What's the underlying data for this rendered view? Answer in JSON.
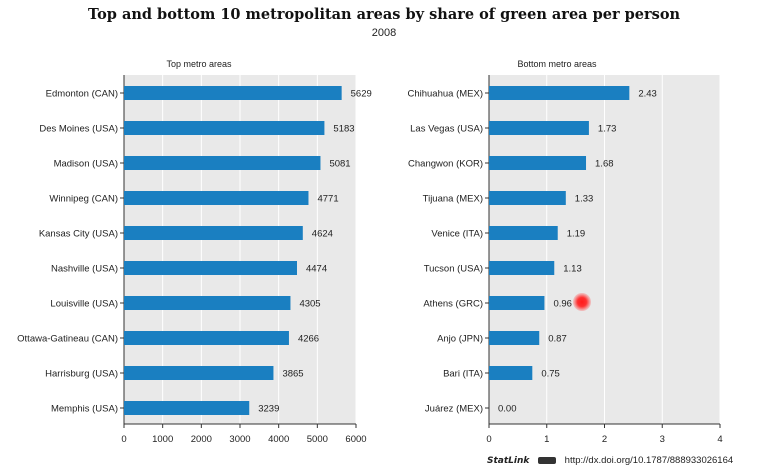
{
  "header": {
    "title": "Top and bottom 10 metropolitan areas by share of green area per person",
    "subtitle": "2008"
  },
  "footer": {
    "statlink": "StatLink",
    "url": "http://dx.doi.org/10.1787/888933026164"
  },
  "colors": {
    "bar": "#1a7fc1",
    "panel": "#e9e9e9",
    "grid": "#ffffff"
  },
  "chart_data": [
    {
      "type": "bar",
      "orientation": "horizontal",
      "title": "Top metro areas",
      "categories": [
        "Edmonton (CAN)",
        "Des Moines (USA)",
        "Madison (USA)",
        "Winnipeg (CAN)",
        "Kansas City (USA)",
        "Nashville (USA)",
        "Louisville (USA)",
        "Ottawa-Gatineau (CAN)",
        "Harrisburg (USA)",
        "Memphis (USA)"
      ],
      "values": [
        5629,
        5183,
        5081,
        4771,
        4624,
        4474,
        4305,
        4266,
        3865,
        3239
      ],
      "value_labels": [
        "5629",
        "5183",
        "5081",
        "4771",
        "4624",
        "4474",
        "4305",
        "4266",
        "3865",
        "3239"
      ],
      "xlim": [
        0,
        6000
      ],
      "ticks": [
        0,
        1000,
        2000,
        3000,
        4000,
        5000,
        6000
      ],
      "tick_labels": [
        "0",
        "1000",
        "2000",
        "3000",
        "4000",
        "5000",
        "6000"
      ],
      "grid": true
    },
    {
      "type": "bar",
      "orientation": "horizontal",
      "title": "Bottom metro areas",
      "categories": [
        "Chihuahua (MEX)",
        "Las Vegas (USA)",
        "Changwon (KOR)",
        "Tijuana (MEX)",
        "Venice (ITA)",
        "Tucson (USA)",
        "Athens (GRC)",
        "Anjo (JPN)",
        "Bari (ITA)",
        "Juárez (MEX)"
      ],
      "values": [
        2.43,
        1.73,
        1.68,
        1.33,
        1.19,
        1.13,
        0.96,
        0.87,
        0.75,
        0.0
      ],
      "value_labels": [
        "2.43",
        "1.73",
        "1.68",
        "1.33",
        "1.19",
        "1.13",
        "0.96",
        "0.87",
        "0.75",
        "0.00"
      ],
      "xlim": [
        0,
        4
      ],
      "ticks": [
        0,
        1,
        2,
        3,
        4
      ],
      "tick_labels": [
        "0",
        "1",
        "2",
        "3",
        "4"
      ],
      "grid": true
    }
  ]
}
